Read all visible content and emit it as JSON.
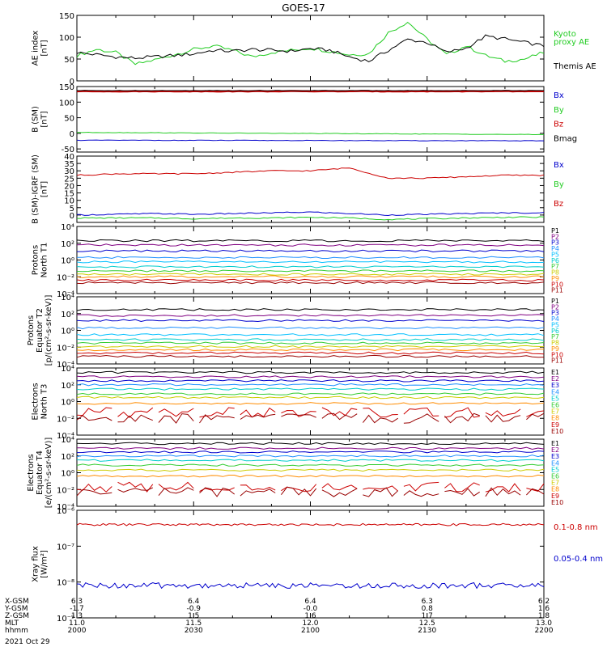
{
  "title": "GOES-17",
  "colors": {
    "black": "#000000",
    "green": "#22cc22",
    "red": "#cc0000",
    "blue": "#0000cc",
    "darkred": "#b00000",
    "darkgreen": "#009900"
  },
  "chart_data": [
    {
      "type": "line",
      "panel": "AE",
      "ylabel": [
        "AE index",
        "[nT]"
      ],
      "ylim": [
        0,
        150
      ],
      "yticks": [
        "0",
        "50",
        "100",
        "150"
      ],
      "x": [
        2000,
        2005,
        2010,
        2015,
        2020,
        2025,
        2030,
        2035,
        2040,
        2045,
        2050,
        2055,
        2100,
        2105,
        2110,
        2115,
        2120,
        2125,
        2130,
        2135,
        2140,
        2145,
        2150,
        2155,
        2200
      ],
      "series": [
        {
          "name": "Kyoto proxy AE",
          "color": "#22cc22",
          "values": [
            58,
            72,
            65,
            38,
            48,
            60,
            72,
            80,
            70,
            55,
            65,
            70,
            75,
            68,
            60,
            62,
            110,
            135,
            95,
            60,
            80,
            58,
            45,
            50,
            65
          ]
        },
        {
          "name": "Themis AE",
          "color": "#000000",
          "values": [
            65,
            60,
            55,
            52,
            55,
            58,
            62,
            70,
            68,
            72,
            70,
            68,
            74,
            70,
            55,
            45,
            70,
            95,
            88,
            65,
            75,
            102,
            96,
            88,
            80
          ]
        }
      ],
      "legend": [
        {
          "text": "Kyoto",
          "color": "#22cc22"
        },
        {
          "text": "proxy AE",
          "color": "#22cc22"
        },
        {
          "text": "Themis AE",
          "color": "#000000"
        }
      ]
    },
    {
      "type": "line",
      "panel": "B",
      "ylabel": [
        "B (SM)",
        "[nT]"
      ],
      "ylim": [
        -60,
        150
      ],
      "yticks": [
        "-50",
        "0",
        "50",
        "100",
        "150"
      ],
      "x": [
        2000,
        2200
      ],
      "series": [
        {
          "name": "Bx",
          "color": "#0000cc",
          "values": [
            -22,
            -24
          ]
        },
        {
          "name": "By",
          "color": "#22cc22",
          "values": [
            3,
            -4
          ]
        },
        {
          "name": "Bz",
          "color": "#cc0000",
          "values": [
            135,
            135
          ]
        },
        {
          "name": "Bmag",
          "color": "#000000",
          "values": [
            137,
            137
          ]
        }
      ],
      "legend": [
        {
          "text": "Bx",
          "color": "#0000cc"
        },
        {
          "text": "By",
          "color": "#22cc22"
        },
        {
          "text": "Bz",
          "color": "#cc0000"
        },
        {
          "text": "Bmag",
          "color": "#000000"
        }
      ]
    },
    {
      "type": "line",
      "panel": "B-IGRF",
      "ylabel": [
        "B (SM)-IGRF (SM)",
        "[nT]"
      ],
      "ylim": [
        -5,
        40
      ],
      "yticks": [
        "0",
        "5",
        "10",
        "15",
        "20",
        "25",
        "30",
        "35",
        "40"
      ],
      "x": [
        2000,
        2010,
        2020,
        2030,
        2040,
        2050,
        2100,
        2110,
        2120,
        2130,
        2140,
        2150,
        2200
      ],
      "series": [
        {
          "name": "Bx",
          "color": "#0000cc",
          "values": [
            0,
            0.5,
            1,
            0.5,
            1,
            1.5,
            2,
            1,
            0,
            0.5,
            1,
            1.5,
            1.5
          ]
        },
        {
          "name": "By",
          "color": "#22cc22",
          "values": [
            -2,
            -2,
            -2,
            -2.5,
            -2,
            -2,
            -1.5,
            -2,
            -3,
            -2.5,
            -2,
            -1.5,
            -1.5
          ]
        },
        {
          "name": "Bz",
          "color": "#cc0000",
          "values": [
            27,
            28,
            28,
            28,
            29,
            30,
            30,
            32,
            25,
            25,
            26,
            27,
            27
          ]
        }
      ],
      "legend": [
        {
          "text": "Bx",
          "color": "#0000cc"
        },
        {
          "text": "By",
          "color": "#22cc22"
        },
        {
          "text": "Bz",
          "color": "#cc0000"
        }
      ]
    },
    {
      "type": "line",
      "panel": "Protons North T1",
      "ylabel": [
        "Protons",
        "North T1"
      ],
      "yscale": "log",
      "ylim": [
        0.0001,
        10000
      ],
      "yticks": [
        "10⁴",
        "10²",
        "10⁰",
        "10⁻²",
        "10⁻⁴"
      ],
      "levels": [
        {
          "name": "P1",
          "color": "#000000",
          "value": 200
        },
        {
          "name": "P2",
          "color": "#800080",
          "value": 60
        },
        {
          "name": "P3",
          "color": "#0000cc",
          "value": 12
        },
        {
          "name": "P4",
          "color": "#1e90ff",
          "value": 2
        },
        {
          "name": "P5",
          "color": "#00bfff",
          "value": 0.6
        },
        {
          "name": "P6",
          "color": "#00cccc",
          "value": 0.15
        },
        {
          "name": "P7",
          "color": "#33cc33",
          "value": 0.05
        },
        {
          "name": "P8",
          "color": "#cccc00",
          "value": 0.02
        },
        {
          "name": "P9",
          "color": "#ff8c00",
          "value": 0.01
        },
        {
          "name": "P10",
          "color": "#cc0000",
          "value": 0.004
        },
        {
          "name": "P11",
          "color": "#990000",
          "value": 0.002
        }
      ]
    },
    {
      "type": "line",
      "panel": "Protons Equator T2",
      "ylabel": [
        "Protons",
        "Equator T2",
        "[p/(cm²-s-sr-keV)]"
      ],
      "yscale": "log",
      "ylim": [
        0.0001,
        10000
      ],
      "yticks": [
        "10⁴",
        "10²",
        "10⁰",
        "10⁻²",
        "10⁻⁴"
      ],
      "levels": [
        {
          "name": "P1",
          "color": "#000000",
          "value": 300
        },
        {
          "name": "P2",
          "color": "#800080",
          "value": 60
        },
        {
          "name": "P3",
          "color": "#0000cc",
          "value": 15
        },
        {
          "name": "P4",
          "color": "#1e90ff",
          "value": 2
        },
        {
          "name": "P5",
          "color": "#00bfff",
          "value": 0.3
        },
        {
          "name": "P6",
          "color": "#00cccc",
          "value": 0.08
        },
        {
          "name": "P7",
          "color": "#33cc33",
          "value": 0.03
        },
        {
          "name": "P8",
          "color": "#cccc00",
          "value": 0.012
        },
        {
          "name": "P9",
          "color": "#ff8c00",
          "value": 0.005
        },
        {
          "name": "P10",
          "color": "#cc0000",
          "value": 0.002
        },
        {
          "name": "P11",
          "color": "#990000",
          "value": 0.0008
        }
      ]
    },
    {
      "type": "line",
      "panel": "Electrons North T3",
      "ylabel": [
        "Electrons",
        "North T3"
      ],
      "yscale": "log",
      "ylim": [
        0.0001,
        10000
      ],
      "yticks": [
        "10⁴",
        "10²",
        "10⁰",
        "10⁻²",
        "10⁻⁴"
      ],
      "levels": [
        {
          "name": "E1",
          "color": "#000000",
          "value": 3000
        },
        {
          "name": "E2",
          "color": "#800080",
          "value": 900
        },
        {
          "name": "E3",
          "color": "#0000cc",
          "value": 300
        },
        {
          "name": "E4",
          "color": "#1e90ff",
          "value": 100
        },
        {
          "name": "E5",
          "color": "#00cccc",
          "value": 30
        },
        {
          "name": "E6",
          "color": "#33cc33",
          "value": 8
        },
        {
          "name": "E7",
          "color": "#cccc00",
          "value": 3
        },
        {
          "name": "E8",
          "color": "#ff8c00",
          "value": 0.6
        },
        {
          "name": "E9",
          "color": "#cc0000",
          "value": 0.05
        },
        {
          "name": "E10",
          "color": "#990000",
          "value": 0.01
        }
      ]
    },
    {
      "type": "line",
      "panel": "Electrons Equator T4",
      "ylabel": [
        "Electrons",
        "Equator T4",
        "[e/(cm²-s-sr-keV)]"
      ],
      "yscale": "log",
      "ylim": [
        0.0001,
        10000
      ],
      "yticks": [
        "10⁴",
        "10²",
        "10⁰",
        "10⁻²",
        "10⁻⁴"
      ],
      "levels": [
        {
          "name": "E1",
          "color": "#000000",
          "value": 3000
        },
        {
          "name": "E2",
          "color": "#800080",
          "value": 800
        },
        {
          "name": "E3",
          "color": "#0000cc",
          "value": 300
        },
        {
          "name": "E4",
          "color": "#1e90ff",
          "value": 100
        },
        {
          "name": "E5",
          "color": "#00cccc",
          "value": 30
        },
        {
          "name": "E6",
          "color": "#33cc33",
          "value": 8
        },
        {
          "name": "E7",
          "color": "#cccc00",
          "value": 2
        },
        {
          "name": "E8",
          "color": "#ff8c00",
          "value": 0.4
        },
        {
          "name": "E9",
          "color": "#cc0000",
          "value": 0.02
        },
        {
          "name": "E10",
          "color": "#990000",
          "value": 0.005
        }
      ]
    },
    {
      "type": "line",
      "panel": "Xray",
      "ylabel": [
        "Xray flux",
        "[W/m²]"
      ],
      "yscale": "log",
      "ylim": [
        1e-09,
        1e-06
      ],
      "yticks": [
        "10⁻⁶",
        "10⁻⁷",
        "10⁻⁸",
        "10⁻⁹"
      ],
      "series": [
        {
          "name": "0.1-0.8 nm",
          "color": "#cc0000",
          "value": 4e-07
        },
        {
          "name": "0.05-0.4 nm",
          "color": "#0000cc",
          "value": 8e-09
        }
      ],
      "legend": [
        {
          "text": "0.1-0.8 nm",
          "color": "#cc0000"
        },
        {
          "text": "0.05-0.4 nm",
          "color": "#0000cc"
        }
      ]
    }
  ],
  "xaxis": {
    "rows": [
      {
        "label": "X-GSM",
        "values": [
          "6.3",
          "6.4",
          "6.4",
          "6.3",
          "6.2"
        ]
      },
      {
        "label": "Y-GSM",
        "values": [
          "-1.7",
          "-0.9",
          "-0.0",
          "0.8",
          "1.6"
        ]
      },
      {
        "label": "Z-GSM",
        "values": [
          "1.3",
          "1.5",
          "1.6",
          "1.7",
          "1.8"
        ]
      },
      {
        "label": "MLT",
        "values": [
          "11.0",
          "11.5",
          "12.0",
          "12.5",
          "13.0"
        ]
      },
      {
        "label": "hhmm",
        "values": [
          "2000",
          "2030",
          "2100",
          "2130",
          "2200"
        ]
      }
    ],
    "date": "2021 Oct 29"
  }
}
